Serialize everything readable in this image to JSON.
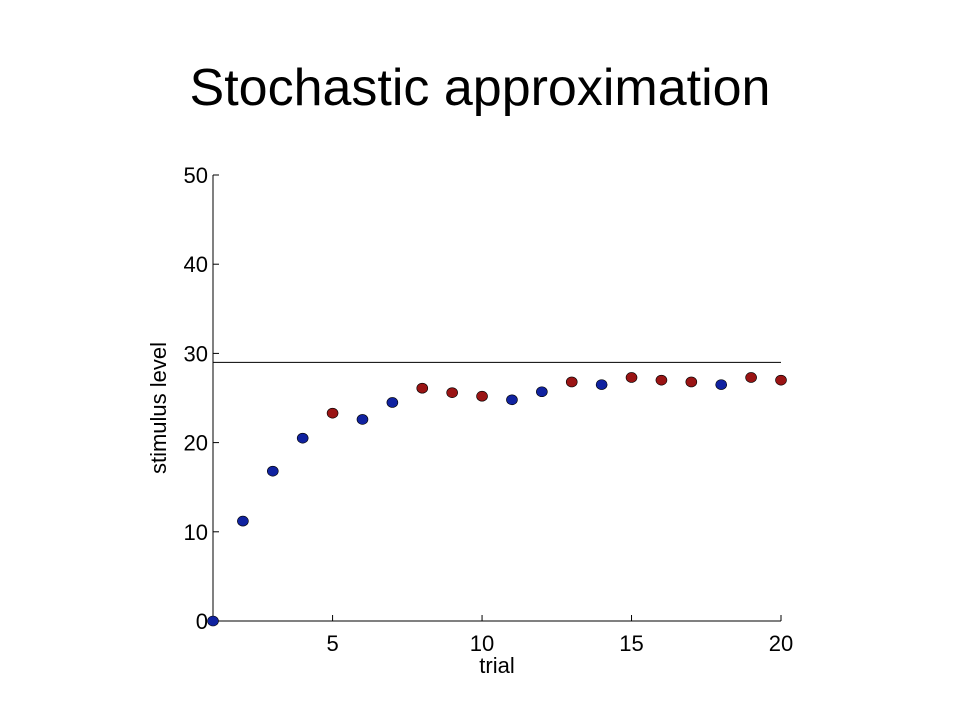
{
  "slide": {
    "title": "Stochastic approximation"
  },
  "chart_data": {
    "type": "scatter",
    "title": "",
    "xlabel": "trial",
    "ylabel": "stimulus level",
    "xlim": [
      1,
      20
    ],
    "ylim": [
      0,
      50
    ],
    "xticks": [
      5,
      10,
      15,
      20
    ],
    "yticks": [
      0,
      10,
      20,
      30,
      40,
      50
    ],
    "grid": false,
    "reference_line": {
      "y": 29,
      "x_range": [
        1,
        20
      ],
      "color": "#000000"
    },
    "colors": {
      "blue": "#1022a0",
      "red": "#9a1414"
    },
    "points": [
      {
        "x": 1,
        "y": 0,
        "color": "blue"
      },
      {
        "x": 2,
        "y": 11.2,
        "color": "blue"
      },
      {
        "x": 3,
        "y": 16.8,
        "color": "blue"
      },
      {
        "x": 4,
        "y": 20.5,
        "color": "blue"
      },
      {
        "x": 5,
        "y": 23.3,
        "color": "red"
      },
      {
        "x": 6,
        "y": 22.6,
        "color": "blue"
      },
      {
        "x": 7,
        "y": 24.5,
        "color": "blue"
      },
      {
        "x": 8,
        "y": 26.1,
        "color": "red"
      },
      {
        "x": 9,
        "y": 25.6,
        "color": "red"
      },
      {
        "x": 10,
        "y": 25.2,
        "color": "red"
      },
      {
        "x": 11,
        "y": 24.8,
        "color": "blue"
      },
      {
        "x": 12,
        "y": 25.7,
        "color": "blue"
      },
      {
        "x": 13,
        "y": 26.8,
        "color": "red"
      },
      {
        "x": 14,
        "y": 26.5,
        "color": "blue"
      },
      {
        "x": 15,
        "y": 27.3,
        "color": "red"
      },
      {
        "x": 16,
        "y": 27.0,
        "color": "red"
      },
      {
        "x": 17,
        "y": 26.8,
        "color": "red"
      },
      {
        "x": 18,
        "y": 26.5,
        "color": "blue"
      },
      {
        "x": 19,
        "y": 27.3,
        "color": "red"
      },
      {
        "x": 20,
        "y": 27.0,
        "color": "red"
      }
    ]
  }
}
